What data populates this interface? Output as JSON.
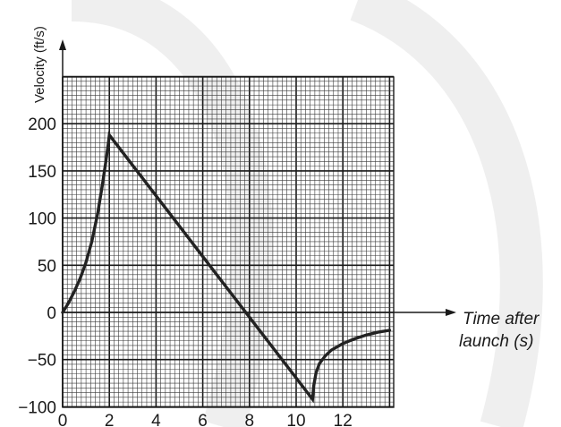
{
  "chart_data": {
    "type": "line",
    "xlabel": "Time after launch (s)",
    "xlabel_lines": [
      "Time after",
      "launch (s)"
    ],
    "ylabel": "Velocity (ft/s)",
    "xlim": [
      0,
      14
    ],
    "ylim": [
      -100,
      250
    ],
    "xticks": [
      0,
      2,
      4,
      6,
      8,
      10,
      12
    ],
    "yticks": [
      -100,
      -50,
      0,
      50,
      100,
      150,
      200
    ],
    "grid": true,
    "series": [
      {
        "x": [
          0,
          0.25,
          0.5,
          0.75,
          1.0,
          1.25,
          1.5,
          1.7,
          1.85,
          1.95,
          2.0,
          10.7,
          10.75,
          10.85,
          11.0,
          11.25,
          11.5,
          12.0,
          12.5,
          13.0,
          13.5,
          14.0
        ],
        "values": [
          0,
          10,
          22,
          36,
          53,
          75,
          105,
          135,
          160,
          178,
          188,
          -92,
          -78,
          -64,
          -54,
          -46,
          -40,
          -33,
          -28,
          -24,
          -21,
          -19
        ]
      }
    ]
  },
  "colors": {
    "watermark": "#dcdcdc",
    "grid_minor": "#3a3a3a",
    "grid_major": "#1a1a1a",
    "curve": "#222222",
    "text": "#1a1a1a"
  }
}
